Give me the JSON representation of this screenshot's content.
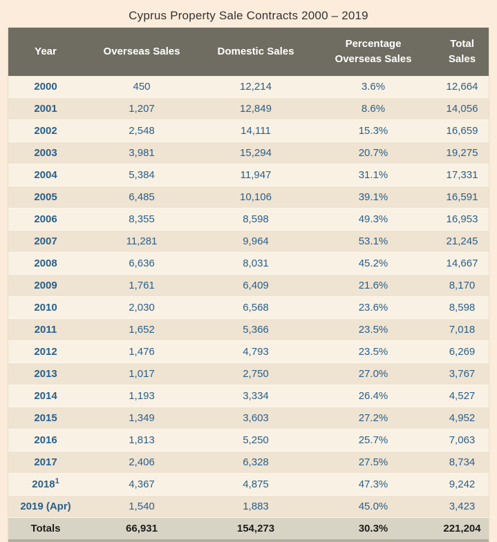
{
  "title": "Cyprus Property Sale Contracts 2000 – 2019",
  "colors": {
    "page_bg": "#fcecdb",
    "title_text": "#33322f",
    "header_bg": "#6f6d61",
    "header_text": "#ffffff",
    "row_odd_bg": "#f9f1e3",
    "row_even_bg": "#efe3d1",
    "row_divider": "#fdf7ea",
    "totals_bg": "#d8d4c5",
    "totals_text": "#1c1c1a",
    "data_text": "#275f8c",
    "table_bottom_edge": "#b2afa0"
  },
  "table": {
    "header_lines": [
      {
        "line1": "Year",
        "line2": ""
      },
      {
        "line1": "Overseas Sales",
        "line2": ""
      },
      {
        "line1": "Domestic Sales",
        "line2": ""
      },
      {
        "line1": "Percentage",
        "line2": "Overseas Sales"
      },
      {
        "line1": "Total",
        "line2": "Sales"
      }
    ]
  },
  "chart_data": {
    "type": "table",
    "title": "Cyprus Property Sale Contracts 2000 – 2019",
    "columns": [
      "Year",
      "Overseas Sales",
      "Domestic Sales",
      "Percentage Overseas Sales",
      "Total Sales"
    ],
    "rows": [
      {
        "year": "2000",
        "overseas": "450",
        "domestic": "12,214",
        "pct": "3.6%",
        "total": "12,664"
      },
      {
        "year": "2001",
        "overseas": "1,207",
        "domestic": "12,849",
        "pct": "8.6%",
        "total": "14,056"
      },
      {
        "year": "2002",
        "overseas": "2,548",
        "domestic": "14,111",
        "pct": "15.3%",
        "total": "16,659"
      },
      {
        "year": "2003",
        "overseas": "3,981",
        "domestic": "15,294",
        "pct": "20.7%",
        "total": "19,275"
      },
      {
        "year": "2004",
        "overseas": "5,384",
        "domestic": "11,947",
        "pct": "31.1%",
        "total": "17,331"
      },
      {
        "year": "2005",
        "overseas": "6,485",
        "domestic": "10,106",
        "pct": "39.1%",
        "total": "16,591"
      },
      {
        "year": "2006",
        "overseas": "8,355",
        "domestic": "8,598",
        "pct": "49.3%",
        "total": "16,953"
      },
      {
        "year": "2007",
        "overseas": "11,281",
        "domestic": "9,964",
        "pct": "53.1%",
        "total": "21,245"
      },
      {
        "year": "2008",
        "overseas": "6,636",
        "domestic": "8,031",
        "pct": "45.2%",
        "total": "14,667"
      },
      {
        "year": "2009",
        "overseas": "1,761",
        "domestic": "6,409",
        "pct": "21.6%",
        "total": "8,170"
      },
      {
        "year": "2010",
        "overseas": "2,030",
        "domestic": "6,568",
        "pct": "23.6%",
        "total": "8,598"
      },
      {
        "year": "2011",
        "overseas": "1,652",
        "domestic": "5,366",
        "pct": "23.5%",
        "total": "7,018"
      },
      {
        "year": "2012",
        "overseas": "1,476",
        "domestic": "4,793",
        "pct": "23.5%",
        "total": "6,269"
      },
      {
        "year": "2013",
        "overseas": "1,017",
        "domestic": "2,750",
        "pct": "27.0%",
        "total": "3,767"
      },
      {
        "year": "2014",
        "overseas": "1,193",
        "domestic": "3,334",
        "pct": "26.4%",
        "total": "4,527"
      },
      {
        "year": "2015",
        "overseas": "1,349",
        "domestic": "3,603",
        "pct": "27.2%",
        "total": "4,952"
      },
      {
        "year": "2016",
        "overseas": "1,813",
        "domestic": "5,250",
        "pct": "25.7%",
        "total": "7,063"
      },
      {
        "year": "2017",
        "overseas": "2,406",
        "domestic": "6,328",
        "pct": "27.5%",
        "total": "8,734"
      },
      {
        "year": "2018",
        "sup": "1",
        "overseas": "4,367",
        "domestic": "4,875",
        "pct": "47.3%",
        "total": "9,242"
      },
      {
        "year": "2019 (Apr)",
        "overseas": "1,540",
        "domestic": "1,883",
        "pct": "45.0%",
        "total": "3,423"
      }
    ],
    "totals": [
      "Totals",
      "66,931",
      "154,273",
      "30.3%",
      "221,204"
    ]
  }
}
